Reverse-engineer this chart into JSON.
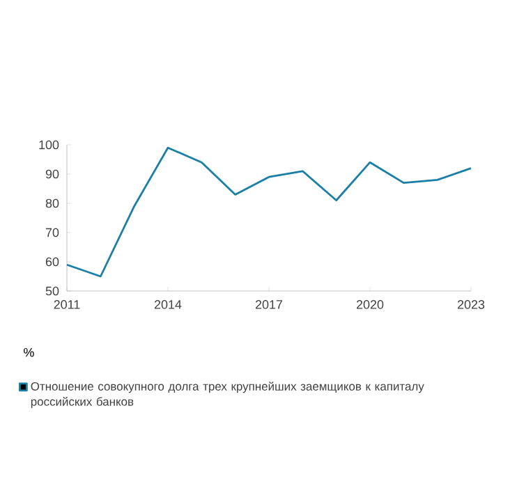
{
  "chart_data": {
    "type": "line",
    "ylabel": "%",
    "x": [
      2011,
      2012,
      2013,
      2014,
      2015,
      2016,
      2017,
      2018,
      2019,
      2020,
      2021,
      2022,
      2023
    ],
    "series": [
      {
        "name": "Отношение совокупного долга трех крупнейших заемщиков к капиталу российских банков",
        "color": "#1a7fa6",
        "values": [
          59,
          55,
          79,
          99,
          94,
          83,
          89,
          91,
          81,
          94,
          87,
          88,
          92
        ]
      }
    ],
    "xlim": [
      2011,
      2023
    ],
    "xticks": [
      2011,
      2014,
      2017,
      2020,
      2023
    ],
    "ylim": [
      50,
      100
    ],
    "yticks": [
      50,
      60,
      70,
      80,
      90,
      100
    ],
    "legend": "bottom"
  }
}
